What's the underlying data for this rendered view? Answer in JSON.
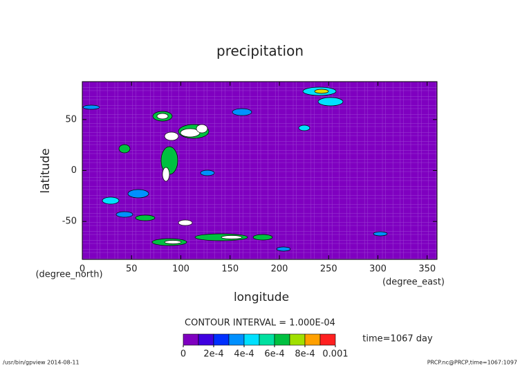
{
  "chart_data": {
    "type": "contour",
    "title": "precipitation",
    "xlabel": "longitude",
    "ylabel": "latitude",
    "y_unit": "(degree_north)",
    "x_unit": "(degree_east)",
    "xlim": [
      0,
      360
    ],
    "xticks": [
      0,
      50,
      100,
      150,
      200,
      250,
      300,
      350
    ],
    "ylim": [
      -87.2,
      87.2
    ],
    "yticks": [
      -50,
      0,
      50
    ],
    "background": "#7f00c0",
    "contour_interval_label": "CONTOUR INTERVAL = 1.000E-04",
    "annotation": "time=1067 day",
    "colorbar": {
      "levels": [
        0,
        0.0001,
        0.0002,
        0.0003,
        0.0004,
        0.0005,
        0.0006,
        0.0007,
        0.0008,
        0.0009,
        0.001
      ],
      "colors": [
        "#7f00c0",
        "#3f00e0",
        "#0030ff",
        "#0090ff",
        "#00e0ff",
        "#00e0a0",
        "#00c040",
        "#a0e000",
        "#ffa000",
        "#ff2020"
      ],
      "ticks": [
        0,
        {
          "value": 0.0002,
          "label": "2e-4"
        },
        {
          "value": 0.0004,
          "label": "4e-4"
        },
        {
          "value": 0.0006,
          "label": "6e-4"
        },
        {
          "value": 0.0008,
          "label": "8e-4"
        },
        0.001
      ]
    },
    "footer_left": "/usr/bin/gpview  2014-08-11",
    "footer_right": "PRCP.nc@PRCP,time=1067:1097"
  }
}
